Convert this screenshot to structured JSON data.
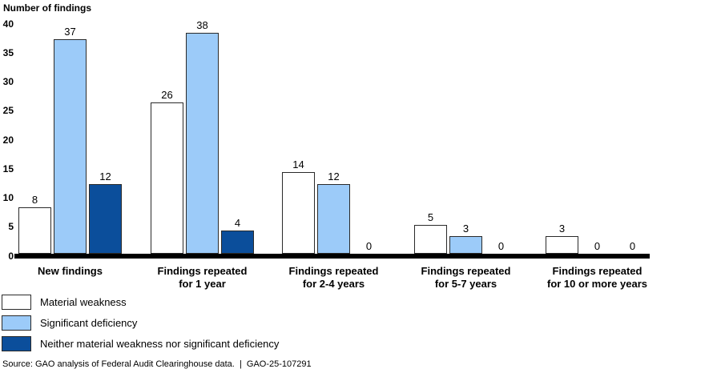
{
  "chart_data": {
    "type": "bar",
    "title": "Number of findings",
    "categories": [
      "New findings",
      "Findings repeated\nfor 1 year",
      "Findings repeated\nfor 2-4 years",
      "Findings repeated\nfor 5-7 years",
      "Findings repeated\nfor 10 or more years"
    ],
    "series": [
      {
        "name": "Material weakness",
        "color": "#FFFFFF",
        "values": [
          8,
          26,
          14,
          5,
          3
        ]
      },
      {
        "name": "Significant deficiency",
        "color": "#9CCBF9",
        "values": [
          37,
          38,
          12,
          3,
          0
        ]
      },
      {
        "name": "Neither material weakness nor significant deficiency",
        "color": "#0B4E9B",
        "values": [
          12,
          4,
          0,
          0,
          0
        ]
      }
    ],
    "y_ticks": [
      0,
      5,
      10,
      15,
      20,
      25,
      30,
      35,
      40
    ],
    "ylim": [
      0,
      40
    ],
    "grid": false,
    "legend_position": "bottom-left",
    "bar_border_color": "#2a2a2a",
    "axis_color": "#000000"
  },
  "source_note": "Source: GAO analysis of Federal Audit Clearinghouse data.  |  GAO-25-107291"
}
